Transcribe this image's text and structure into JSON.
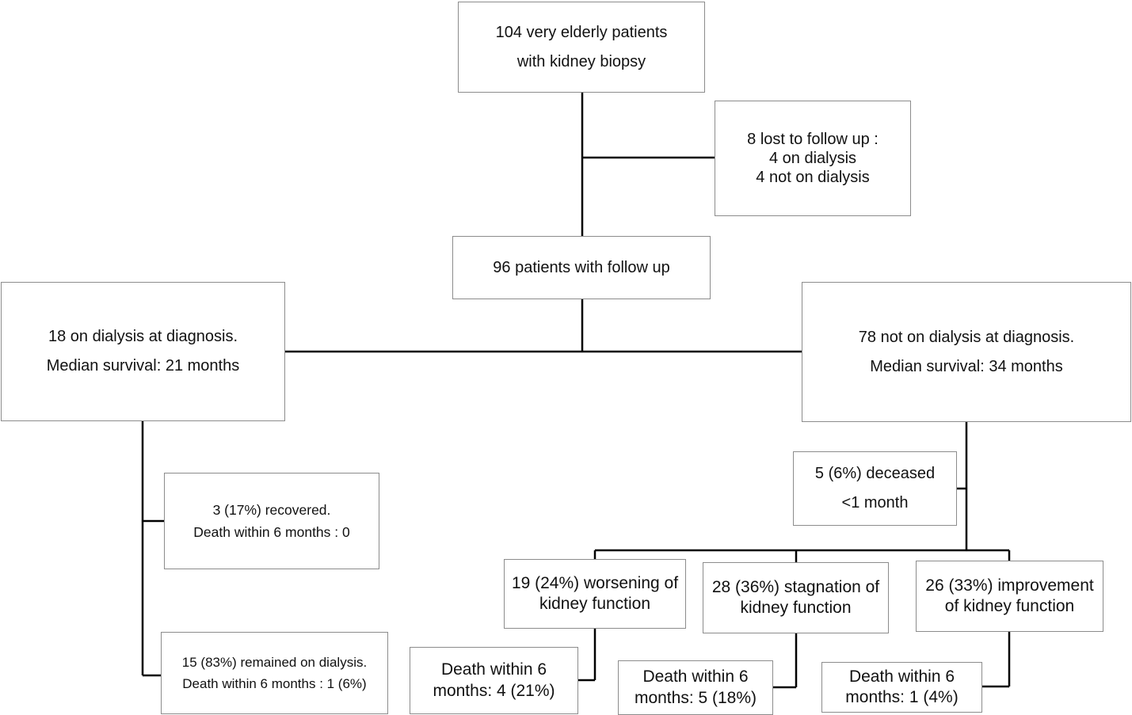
{
  "nodes": {
    "root": {
      "lines": [
        "104 very elderly patients",
        "with kidney biopsy"
      ]
    },
    "lost": {
      "lines": [
        "8 lost to follow up :",
        "4 on dialysis",
        "4 not on dialysis"
      ]
    },
    "followup": {
      "lines": [
        "96 patients with follow up"
      ]
    },
    "dialysis": {
      "lines": [
        "18 on dialysis at diagnosis.",
        "Median survival: 21 months"
      ]
    },
    "no_dialysis": {
      "lines": [
        "78 not on dialysis at diagnosis.",
        "Median survival: 34 months"
      ]
    },
    "deceased": {
      "lines": [
        "5 (6%) deceased",
        "<1 month"
      ]
    },
    "recovered": {
      "lines": [
        "3 (17%) recovered.",
        "Death within 6 months : 0"
      ]
    },
    "remained": {
      "lines": [
        "15 (83%) remained on  dialysis.",
        "Death within 6 months : 1 (6%)"
      ]
    },
    "worsening": {
      "lines": [
        "19  (24%) worsening of",
        "kidney function"
      ]
    },
    "stagnation": {
      "lines": [
        "28 (36%) stagnation of",
        "kidney function"
      ]
    },
    "improvement": {
      "lines": [
        "26 (33%)  improvement",
        "of kidney function"
      ]
    },
    "death_worsening": {
      "lines": [
        "Death within 6",
        "months: 4 (21%)"
      ]
    },
    "death_stagnation": {
      "lines": [
        "Death within 6",
        "months: 5 (18%)"
      ]
    },
    "death_improvement": {
      "lines": [
        "Death within 6",
        "months: 1 (4%)"
      ]
    }
  }
}
